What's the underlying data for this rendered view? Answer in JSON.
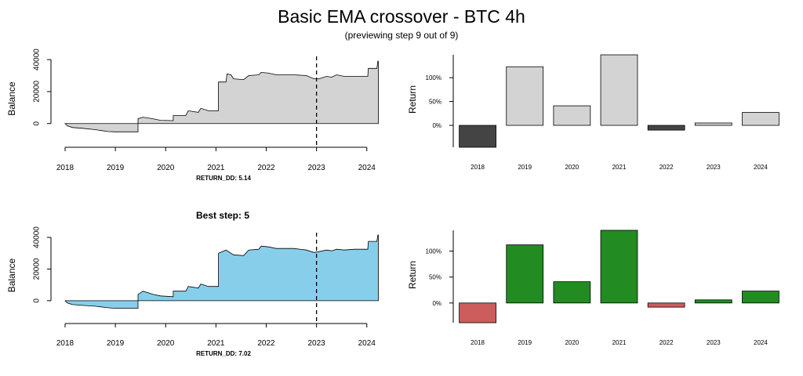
{
  "figure": {
    "title": "Basic EMA crossover - BTC 4h",
    "subtitle": "(previewing step 9 out of 9)",
    "best_title": "Best step: 5"
  },
  "chart_data": [
    {
      "id": "balance-current",
      "type": "area",
      "ylabel": "Balance",
      "fill": "#d3d3d3",
      "xlim": [
        2018.0,
        2024.3
      ],
      "ylim": [
        -7000,
        42000
      ],
      "xticks": [
        "2018",
        "2019",
        "2020",
        "2021",
        "2022",
        "2023",
        "2024"
      ],
      "yticks": [
        "0",
        "20000",
        "40000"
      ],
      "ytick_values": [
        0,
        20000,
        40000
      ],
      "marker_x": 2023,
      "note": "RETURN_DD: 5.14",
      "points": [
        [
          2018.0,
          0
        ],
        [
          2018.05,
          -1500
        ],
        [
          2018.15,
          -2500
        ],
        [
          2018.35,
          -3000
        ],
        [
          2018.6,
          -3800
        ],
        [
          2018.85,
          -5000
        ],
        [
          2019.0,
          -5200
        ],
        [
          2019.45,
          -5200
        ],
        [
          2019.45,
          3000
        ],
        [
          2019.55,
          4000
        ],
        [
          2019.75,
          3000
        ],
        [
          2019.9,
          2000
        ],
        [
          2020.15,
          1800
        ],
        [
          2020.15,
          5000
        ],
        [
          2020.4,
          5000
        ],
        [
          2020.45,
          8000
        ],
        [
          2020.65,
          7000
        ],
        [
          2020.7,
          9500
        ],
        [
          2020.85,
          8000
        ],
        [
          2021.05,
          8000
        ],
        [
          2021.05,
          26000
        ],
        [
          2021.2,
          26000
        ],
        [
          2021.22,
          31000
        ],
        [
          2021.3,
          30500
        ],
        [
          2021.35,
          28000
        ],
        [
          2021.55,
          27500
        ],
        [
          2021.65,
          30000
        ],
        [
          2021.85,
          30500
        ],
        [
          2021.9,
          32000
        ],
        [
          2022.05,
          31500
        ],
        [
          2022.2,
          30500
        ],
        [
          2022.55,
          30500
        ],
        [
          2022.8,
          30000
        ],
        [
          2022.95,
          28000
        ],
        [
          2023.05,
          28000
        ],
        [
          2023.2,
          29500
        ],
        [
          2023.3,
          29000
        ],
        [
          2023.4,
          30500
        ],
        [
          2023.55,
          29500
        ],
        [
          2023.75,
          29500
        ],
        [
          2024.0,
          29500
        ],
        [
          2024.02,
          29500
        ],
        [
          2024.03,
          34500
        ],
        [
          2024.2,
          34500
        ],
        [
          2024.22,
          39000
        ],
        [
          2024.23,
          39000
        ]
      ]
    },
    {
      "id": "returns-current",
      "type": "bar",
      "ylabel": "Return",
      "categories": [
        "2018",
        "2019",
        "2020",
        "2021",
        "2022",
        "2023",
        "2024"
      ],
      "values": [
        -0.46,
        1.23,
        0.41,
        1.48,
        -0.1,
        0.05,
        0.27
      ],
      "colors": [
        "#444444",
        "#d3d3d3",
        "#d3d3d3",
        "#d3d3d3",
        "#444444",
        "#d3d3d3",
        "#d3d3d3"
      ],
      "ylim": [
        -0.46,
        1.48
      ],
      "yticks": [
        "0%",
        "50%",
        "100%"
      ],
      "ytick_values": [
        0,
        0.5,
        1.0
      ]
    },
    {
      "id": "balance-best",
      "type": "area",
      "ylabel": "Balance",
      "fill": "#87ceeb",
      "xlim": [
        2018.0,
        2024.3
      ],
      "ylim": [
        -7000,
        43000
      ],
      "xticks": [
        "2018",
        "2019",
        "2020",
        "2021",
        "2022",
        "2023",
        "2024"
      ],
      "yticks": [
        "0",
        "20000",
        "40000"
      ],
      "ytick_values": [
        0,
        20000,
        40000
      ],
      "marker_x": 2023,
      "note": "RETURN_DD: 7.02",
      "points": [
        [
          2018.0,
          0
        ],
        [
          2018.05,
          -1500
        ],
        [
          2018.15,
          -2500
        ],
        [
          2018.35,
          -3000
        ],
        [
          2018.6,
          -3500
        ],
        [
          2018.85,
          -4500
        ],
        [
          2019.0,
          -4800
        ],
        [
          2019.45,
          -4800
        ],
        [
          2019.45,
          4000
        ],
        [
          2019.55,
          6000
        ],
        [
          2019.75,
          4000
        ],
        [
          2019.9,
          3000
        ],
        [
          2020.15,
          2500
        ],
        [
          2020.15,
          6000
        ],
        [
          2020.4,
          6000
        ],
        [
          2020.45,
          9000
        ],
        [
          2020.65,
          8000
        ],
        [
          2020.7,
          10500
        ],
        [
          2020.85,
          9000
        ],
        [
          2021.05,
          9000
        ],
        [
          2021.05,
          30000
        ],
        [
          2021.2,
          32000
        ],
        [
          2021.35,
          29000
        ],
        [
          2021.55,
          28500
        ],
        [
          2021.65,
          32000
        ],
        [
          2021.85,
          32500
        ],
        [
          2021.9,
          34500
        ],
        [
          2022.05,
          34000
        ],
        [
          2022.2,
          33000
        ],
        [
          2022.55,
          33000
        ],
        [
          2022.8,
          32000
        ],
        [
          2022.95,
          30500
        ],
        [
          2023.05,
          31000
        ],
        [
          2023.2,
          32000
        ],
        [
          2023.3,
          31500
        ],
        [
          2023.4,
          32500
        ],
        [
          2023.55,
          32000
        ],
        [
          2023.75,
          32500
        ],
        [
          2024.0,
          32500
        ],
        [
          2024.02,
          32500
        ],
        [
          2024.03,
          37500
        ],
        [
          2024.2,
          37500
        ],
        [
          2024.22,
          41500
        ],
        [
          2024.23,
          41500
        ]
      ]
    },
    {
      "id": "returns-best",
      "type": "bar",
      "ylabel": "Return",
      "categories": [
        "2018",
        "2019",
        "2020",
        "2021",
        "2022",
        "2023",
        "2024"
      ],
      "values": [
        -0.38,
        1.12,
        0.41,
        1.4,
        -0.08,
        0.06,
        0.23
      ],
      "colors": [
        "#cd5c5c",
        "#228b22",
        "#228b22",
        "#228b22",
        "#cd5c5c",
        "#228b22",
        "#228b22"
      ],
      "ylim": [
        -0.38,
        1.4
      ],
      "yticks": [
        "0%",
        "50%",
        "100%"
      ],
      "ytick_values": [
        0,
        0.5,
        1.0
      ]
    }
  ]
}
